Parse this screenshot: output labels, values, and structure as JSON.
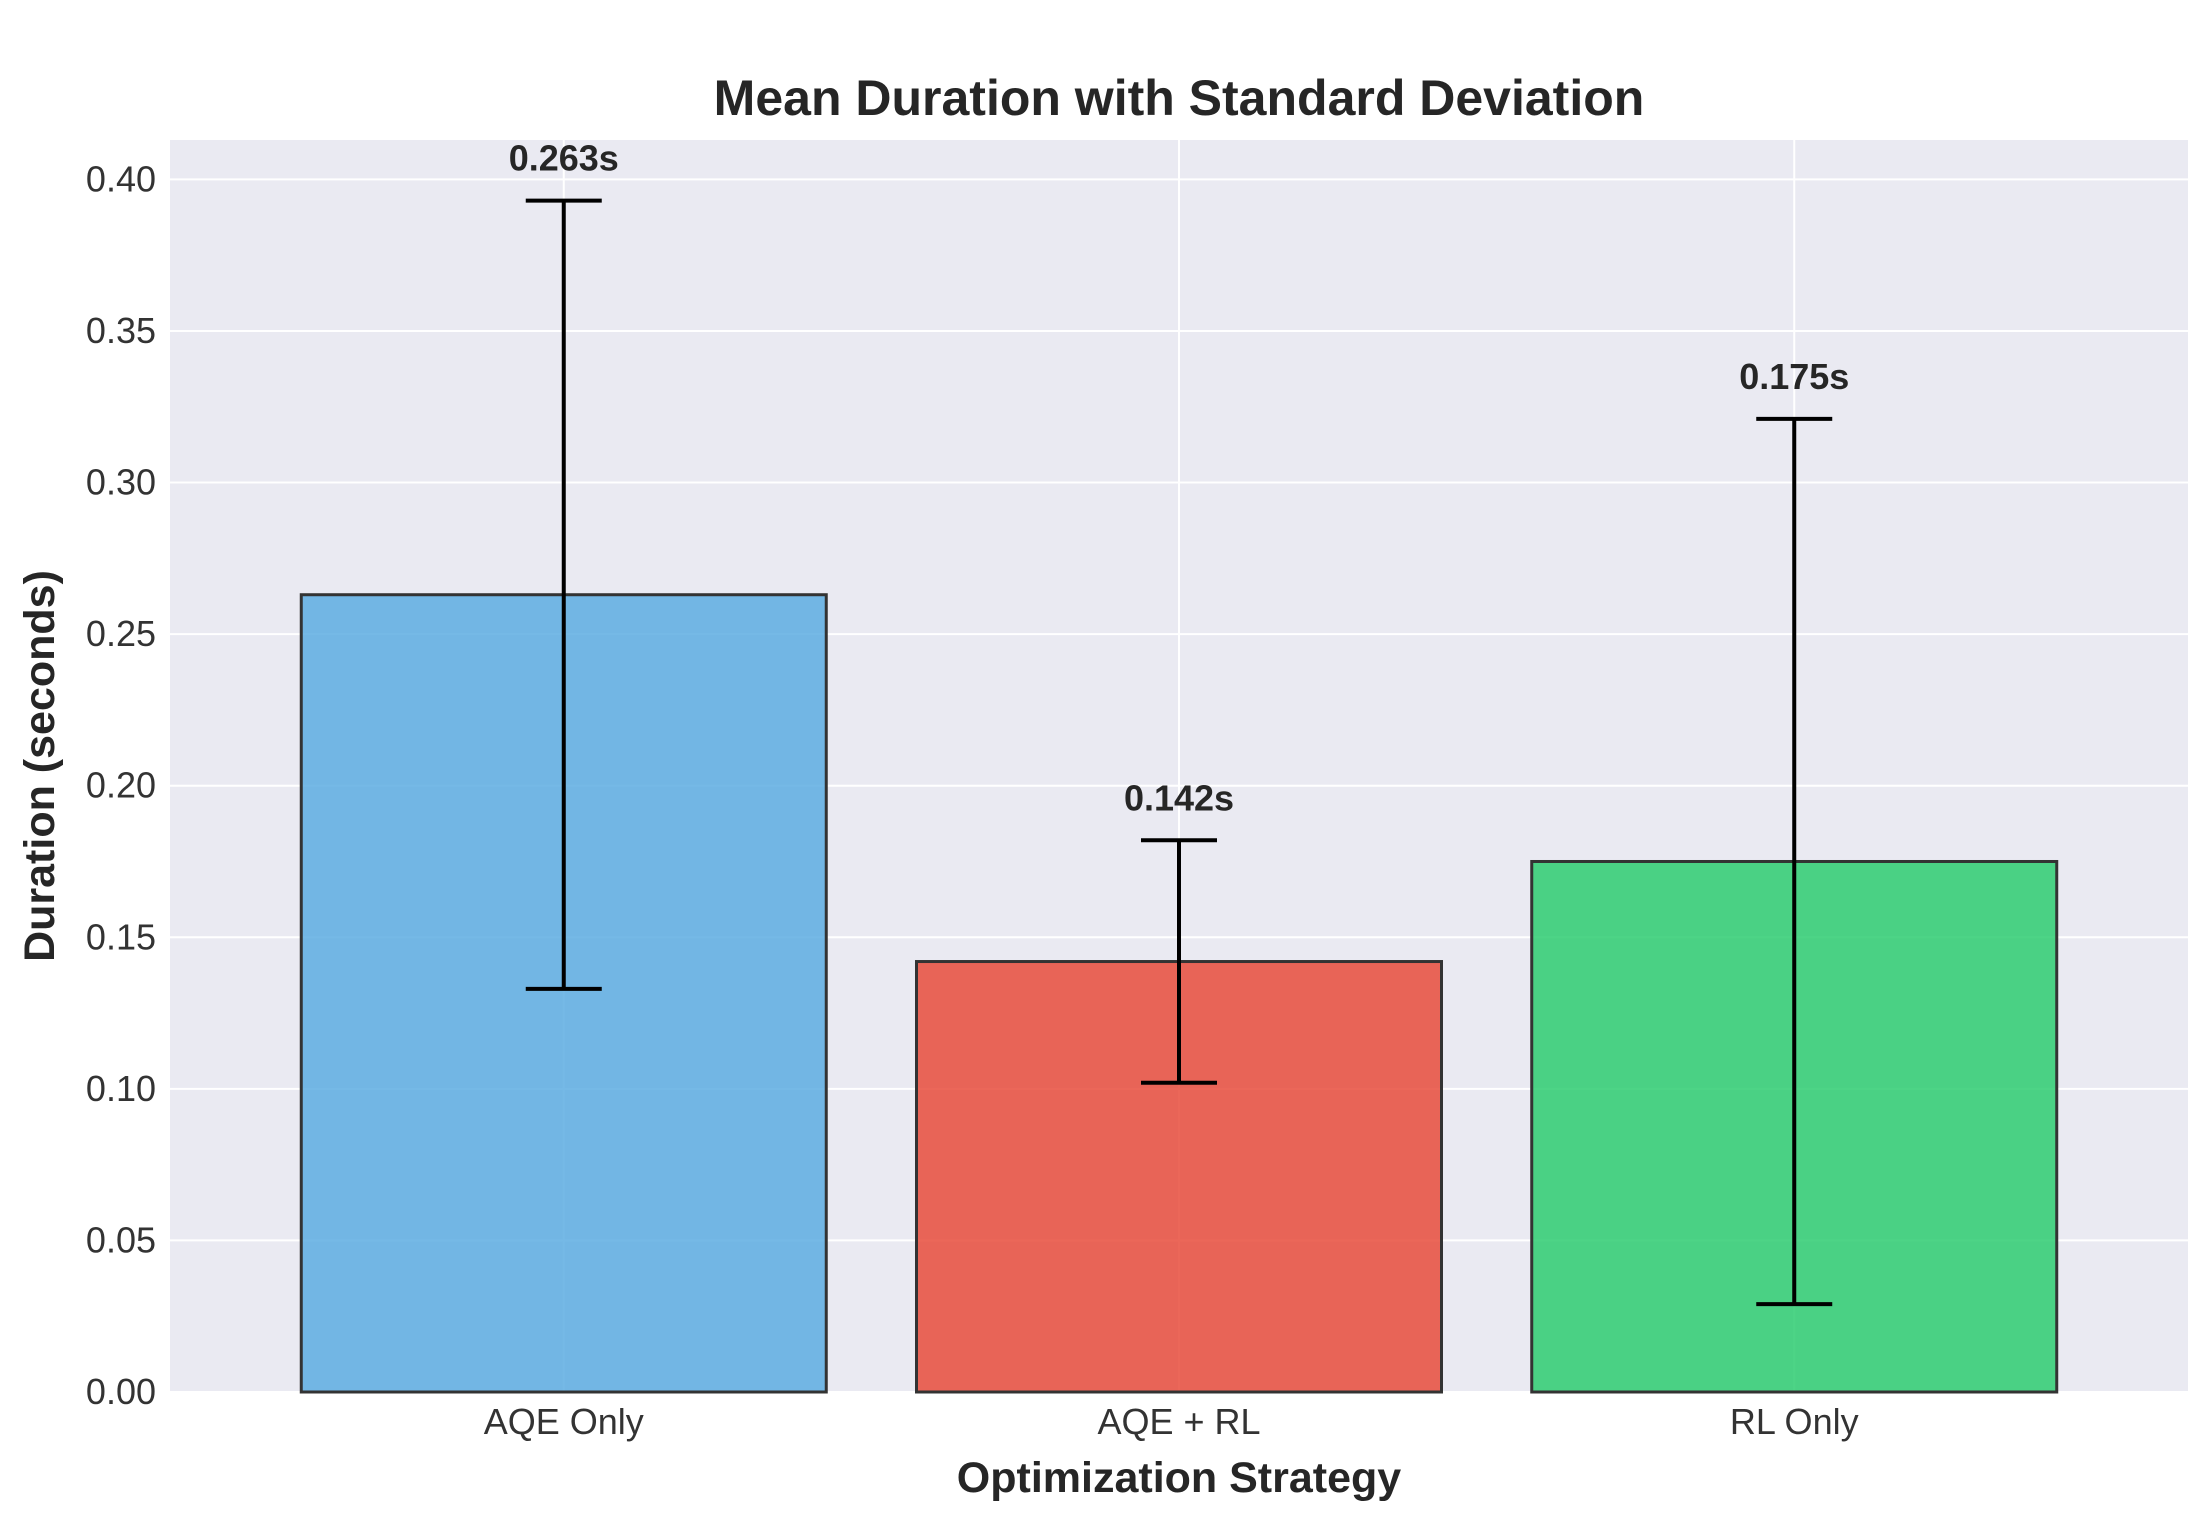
{
  "chart_data": {
    "type": "bar",
    "title": "Mean Duration with Standard Deviation",
    "xlabel": "Optimization Strategy",
    "ylabel": "Duration (seconds)",
    "categories": [
      "AQE Only",
      "AQE + RL",
      "RL Only"
    ],
    "values": [
      0.263,
      0.142,
      0.175
    ],
    "std": [
      0.13,
      0.04,
      0.146
    ],
    "data_labels": [
      "0.263s",
      "0.142s",
      "0.175s"
    ],
    "colors": [
      "#5DADE2",
      "#E74C3C",
      "#2ECC71"
    ],
    "ylim": [
      0,
      0.413
    ],
    "yticks": [
      0.0,
      0.05,
      0.1,
      0.15,
      0.2,
      0.25,
      0.3,
      0.35,
      0.4
    ],
    "ytick_labels": [
      "0.00",
      "0.05",
      "0.10",
      "0.15",
      "0.20",
      "0.25",
      "0.30",
      "0.35",
      "0.40"
    ],
    "grid": true,
    "background": "#EAEAF2"
  }
}
